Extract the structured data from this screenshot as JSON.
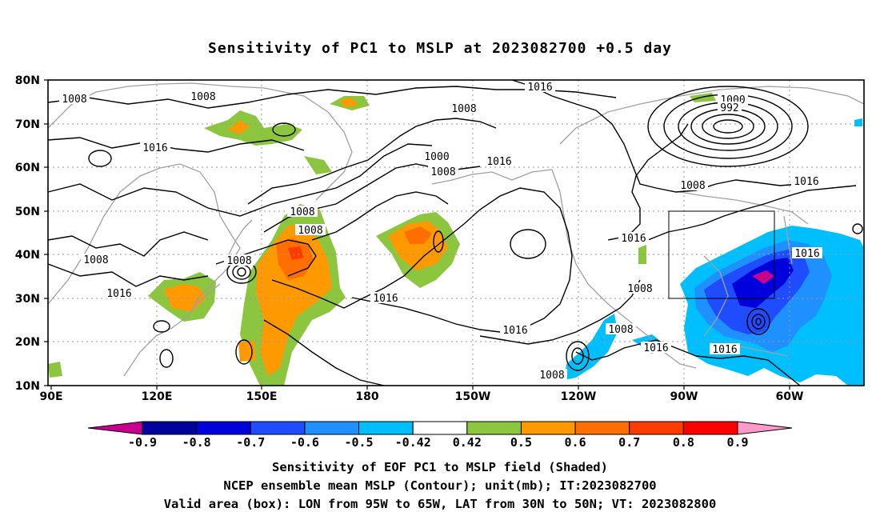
{
  "title": "Sensitivity of PC1 to MSLP at 2023082700 +0.5 day",
  "lat_ticks": [
    "80N",
    "70N",
    "60N",
    "50N",
    "40N",
    "30N",
    "20N",
    "10N"
  ],
  "lon_ticks": [
    "90E",
    "120E",
    "150E",
    "180",
    "150W",
    "120W",
    "90W",
    "60W"
  ],
  "contour_labels": [
    "1008",
    "1008",
    "1016",
    "1008",
    "1016",
    "1008",
    "1008",
    "1008",
    "1008",
    "1016",
    "1008",
    "1000",
    "1016",
    "1016",
    "1016",
    "1000",
    "992",
    "1008",
    "1016",
    "1016",
    "1016",
    "1008",
    "1008",
    "1016",
    "1016",
    "1008"
  ],
  "colorbar": {
    "labels": [
      "-0.9",
      "-0.8",
      "-0.7",
      "-0.6",
      "-0.5",
      "-0.42",
      "0.42",
      "0.5",
      "0.6",
      "0.7",
      "0.8",
      "0.9"
    ],
    "colors": [
      "#00009c",
      "#0000dc",
      "#1f4cff",
      "#1e90ff",
      "#00bfff",
      "#ffffff",
      "#8cc63f",
      "#ff9900",
      "#ff6e00",
      "#ff3c00",
      "#ff0000"
    ],
    "low_color": "#c8008c",
    "high_color": "#ff99cc"
  },
  "valid_box": {
    "lon_min": "95W",
    "lon_max": "65W",
    "lat_min": "30N",
    "lat_max": "50N"
  },
  "footer": {
    "line1": "Sensitivity of EOF PC1 to MSLP field (Shaded)",
    "line2": "NCEP ensemble mean MSLP (Contour); unit(mb); IT:2023082700",
    "line3": "Valid area (box): LON from 95W to 65W, LAT from 30N to 50N; VT: 2023082800"
  }
}
